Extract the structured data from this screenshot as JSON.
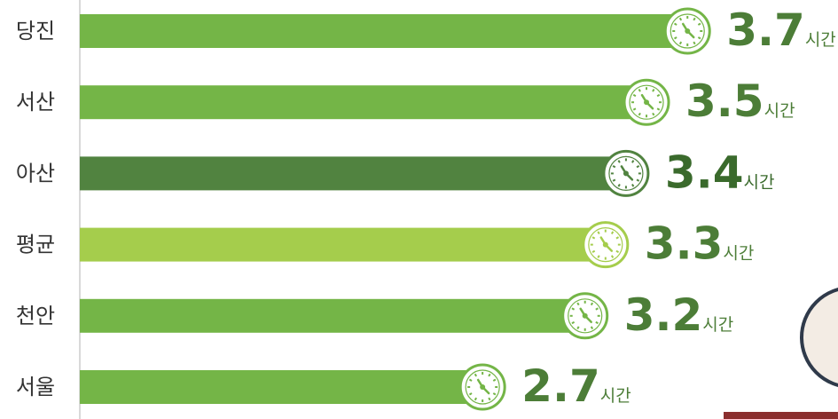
{
  "chart_data": {
    "type": "bar",
    "orientation": "horizontal",
    "categories": [
      "당진",
      "서산",
      "아산",
      "평균",
      "천안",
      "서울"
    ],
    "values": [
      3.7,
      3.5,
      3.4,
      3.3,
      3.2,
      2.7
    ],
    "colors": [
      "#74b547",
      "#74b547",
      "#518340",
      "#a5cd4c",
      "#74b547",
      "#74b547"
    ],
    "label_colors": [
      "#4c7d37",
      "#4c7d37",
      "#3a6a2c",
      "#4c7d37",
      "#4c7d37",
      "#4c7d37"
    ],
    "unit": "시간",
    "xlim": [
      0.7,
      4.4
    ]
  }
}
